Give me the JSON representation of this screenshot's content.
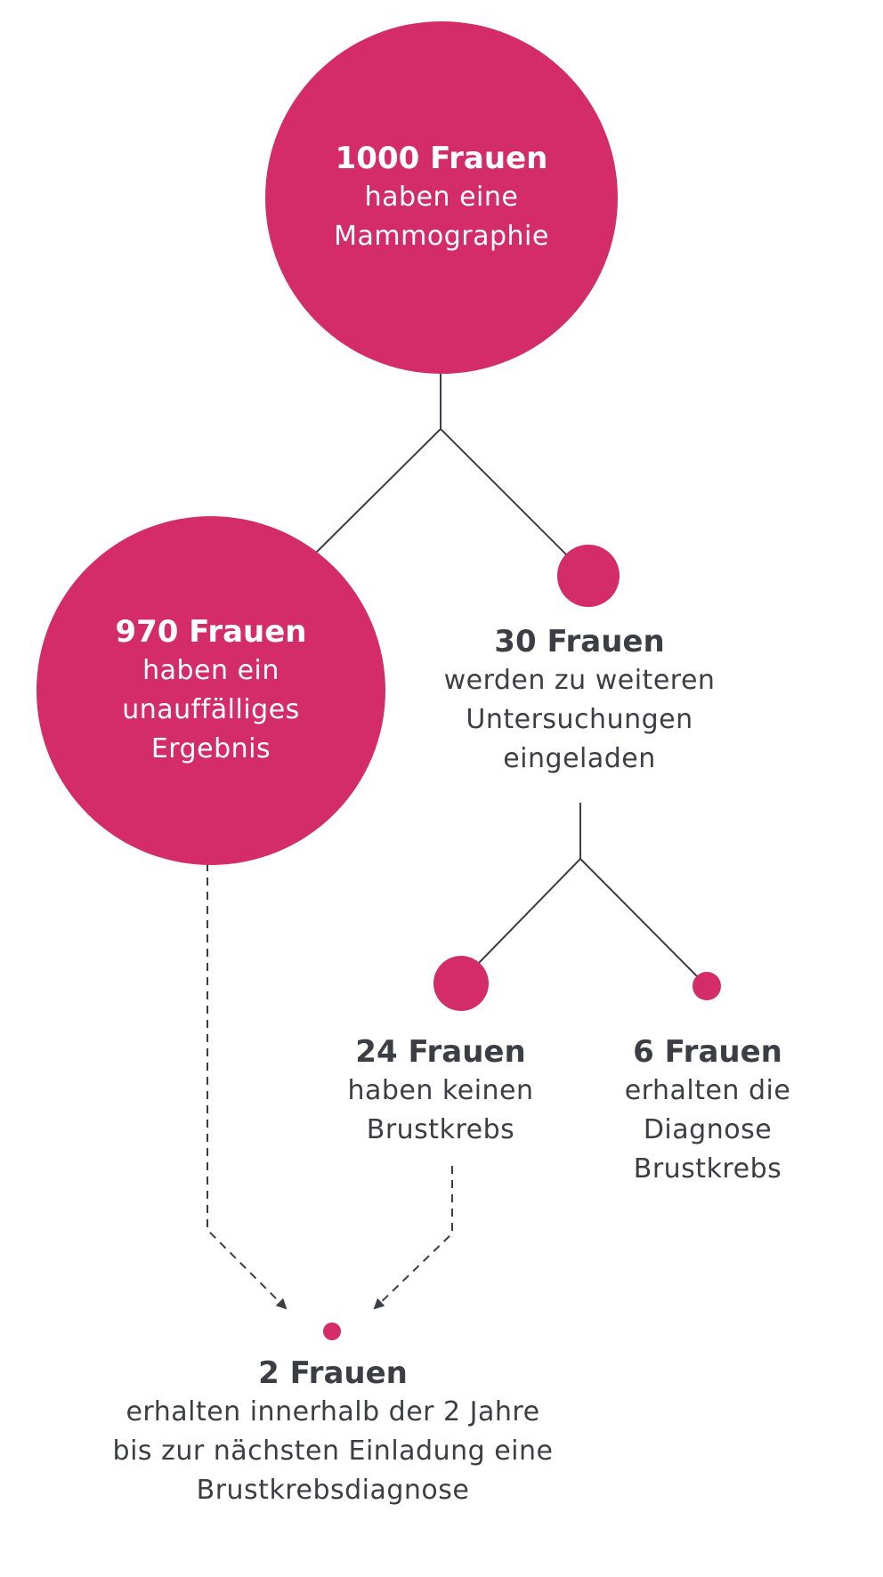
{
  "colors": {
    "accent": "#d32c68",
    "line": "#3d3d45",
    "text": "#3d3d45"
  },
  "nodes": {
    "root": {
      "count": "1000 Frauen",
      "lines": [
        "haben eine",
        "Mammographie"
      ]
    },
    "unremarkable": {
      "count": "970 Frauen",
      "lines": [
        "haben ein",
        "unauffälliges",
        "Ergebnis"
      ]
    },
    "recalled": {
      "count": "30 Frauen",
      "lines": [
        "werden zu weiteren",
        "Untersuchungen",
        "eingeladen"
      ]
    },
    "no_cancer": {
      "count": "24 Frauen",
      "lines": [
        "haben keinen",
        "Brustkrebs"
      ]
    },
    "cancer": {
      "count": "6 Frauen",
      "lines": [
        "erhalten die",
        "Diagnose",
        "Brustkrebs"
      ]
    },
    "interval_cancer": {
      "count": "2 Frauen",
      "lines": [
        "erhalten innerhalb der 2 Jahre",
        "bis zur nächsten Einladung eine",
        "Brustkrebsdiagnose"
      ]
    }
  }
}
